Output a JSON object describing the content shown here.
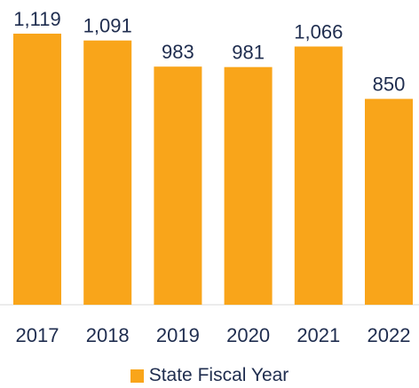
{
  "chart_data": {
    "type": "bar",
    "categories": [
      "2017",
      "2018",
      "2019",
      "2020",
      "2021",
      "2022"
    ],
    "series": [
      {
        "name": "State Fiscal Year",
        "values": [
          1119,
          1091,
          983,
          981,
          1066,
          850
        ],
        "value_labels": [
          "1,119",
          "1,091",
          "983",
          "981",
          "1,066",
          "850"
        ]
      }
    ],
    "ylim": [
      0,
      1119
    ],
    "grid": false,
    "legend_position": "bottom",
    "colors": {
      "bar": "#f9a51a",
      "text": "#1f2d4f",
      "baseline": "#d9d9d9"
    }
  }
}
